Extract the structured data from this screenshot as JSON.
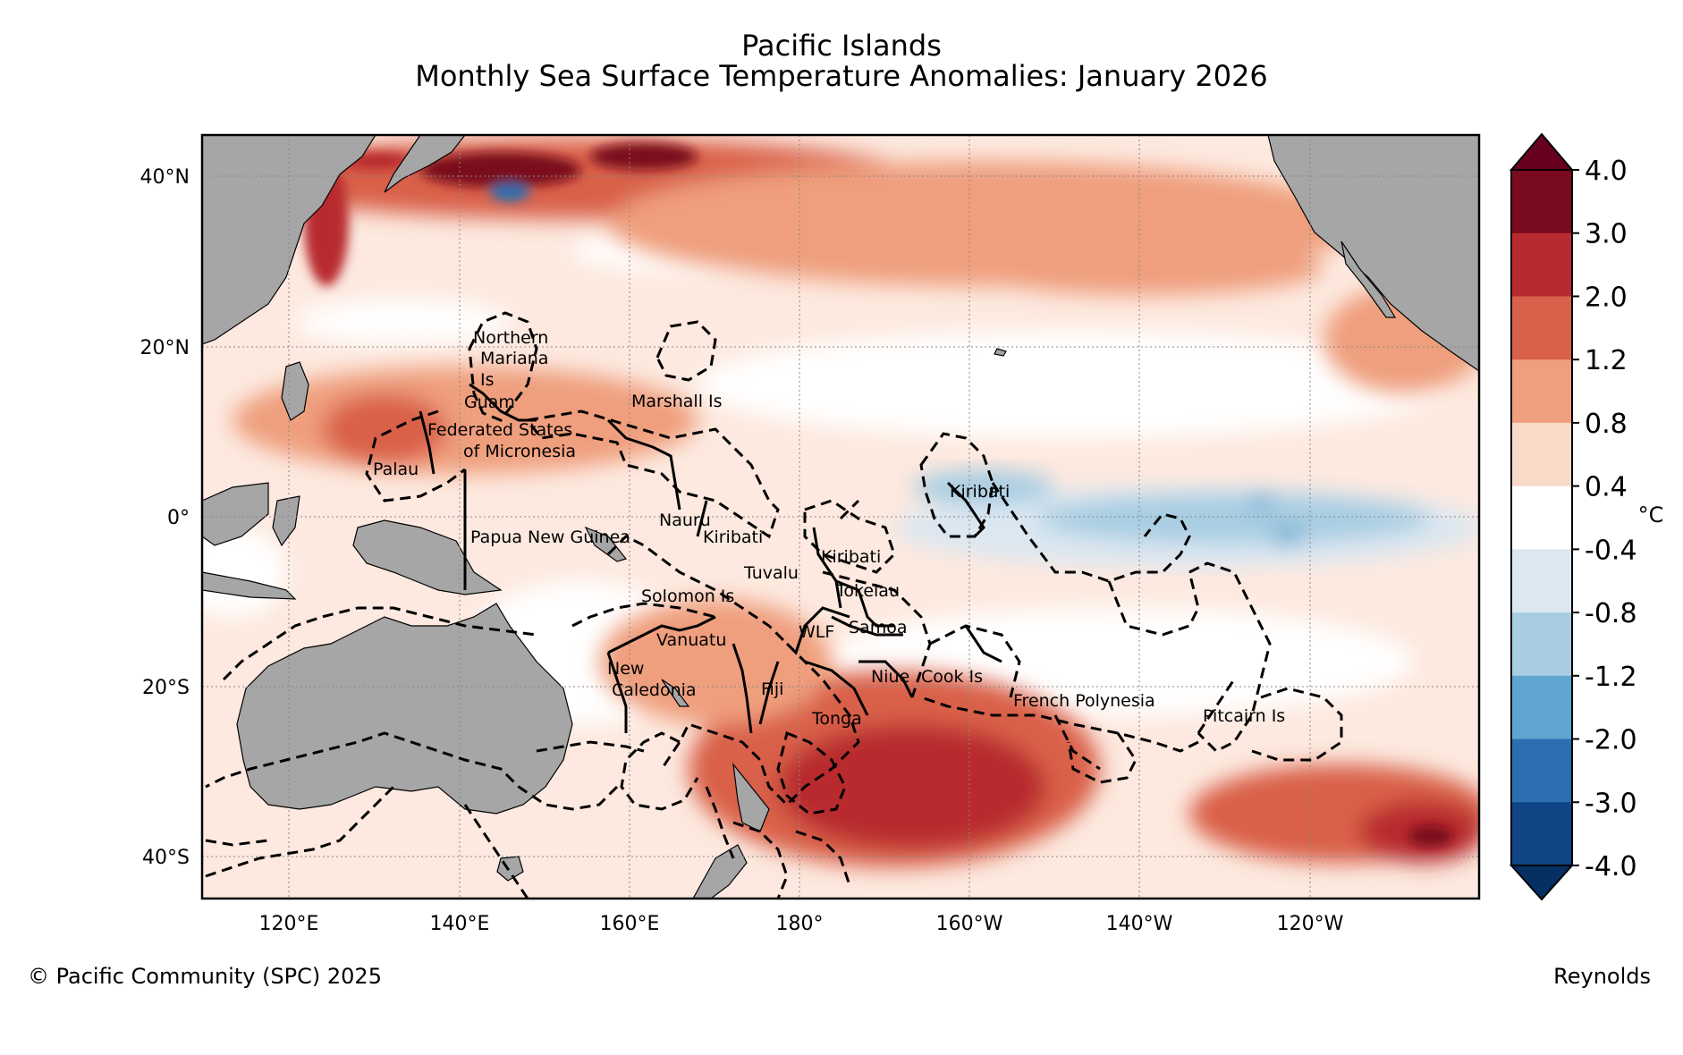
{
  "title": "Pacific Islands",
  "subtitle": "Monthly Sea Surface Temperature Anomalies: January 2026",
  "copyright": "© Pacific Community (SPC) 2025",
  "source": "Reynolds",
  "map": {
    "lat_ticks": [
      "40°N",
      "20°N",
      "0°",
      "20°S",
      "40°S"
    ],
    "lon_ticks": [
      "120°E",
      "140°E",
      "160°E",
      "180°",
      "160°W",
      "140°W",
      "120°W"
    ],
    "labels": [
      "Northern",
      "Mariana",
      "Is",
      "Guam",
      "Marshall Is",
      "Federated States",
      "of Micronesia",
      "Palau",
      "Kiribati",
      "Nauru",
      "Kiribati",
      "Papua New Guinea",
      "Kiribati",
      "Tuvalu",
      "Tokelau",
      "Solomon Is",
      "WLF",
      "Samoa",
      "Vanuatu",
      "New",
      "Caledonia",
      "Fiji",
      "Niue",
      "Cook Is",
      "Tonga",
      "French Polynesia",
      "Pitcairn Is"
    ]
  },
  "colorbar": {
    "unit": "°C",
    "ticks": [
      "4.0",
      "3.0",
      "2.0",
      "1.2",
      "0.8",
      "0.4",
      "-0.4",
      "-0.8",
      "-1.2",
      "-2.0",
      "-3.0",
      "-4.0"
    ],
    "colors": [
      "#7a0a1e",
      "#b82a2f",
      "#d9604a",
      "#ef9f7e",
      "#f9d9c8",
      "#ffffff",
      "#dbe7f1",
      "#a8cde2",
      "#5ea5cf",
      "#2c6fb0",
      "#0f4585"
    ]
  },
  "colors": {
    "land": "#a6a6a6",
    "warm": "#d9604a",
    "cool": "#a8cde2"
  }
}
